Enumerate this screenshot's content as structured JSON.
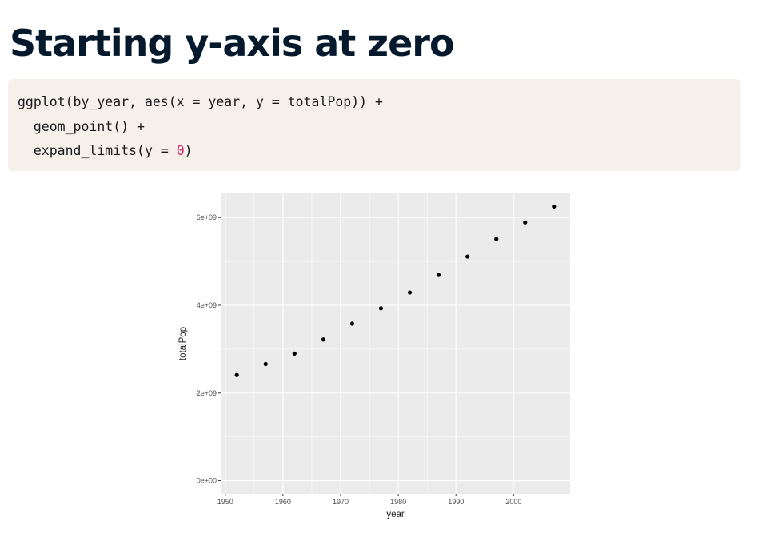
{
  "slide": {
    "title": "Starting y-axis at zero"
  },
  "code": {
    "line1": "ggplot(by_year, aes(x = year, y = totalPop)) +",
    "line2_indent": "  ",
    "line2": "geom_point() +",
    "line3_indent": "  ",
    "line3_pre": "expand_limits(y = ",
    "line3_num": "0",
    "line3_post": ")"
  },
  "colors": {
    "title": "#05192d",
    "code_background": "#f5f1ea",
    "code_number": "#d6246e",
    "panel_background": "#ebebeb",
    "grid_major": "#ffffff",
    "point": "#000000"
  },
  "chart_data": {
    "type": "scatter",
    "xlabel": "year",
    "ylabel": "totalPop",
    "x": [
      1952,
      1957,
      1962,
      1967,
      1972,
      1977,
      1982,
      1987,
      1992,
      1997,
      2002,
      2007
    ],
    "y": [
      2410000000.0,
      2660000000.0,
      2900000000.0,
      3220000000.0,
      3580000000.0,
      3930000000.0,
      4290000000.0,
      4690000000.0,
      5110000000.0,
      5510000000.0,
      5890000000.0,
      6250000000.0
    ],
    "xlim": [
      1949.2,
      2009.8
    ],
    "ylim": [
      -300000000.0,
      6550000000.0
    ],
    "x_ticks": [
      1950,
      1960,
      1970,
      1980,
      1990,
      2000
    ],
    "x_tick_labels": [
      "1950",
      "1960",
      "1970",
      "1980",
      "1990",
      "2000"
    ],
    "y_ticks": [
      0,
      2000000000.0,
      4000000000.0,
      6000000000.0
    ],
    "y_tick_labels": [
      "0e+00",
      "2e+09",
      "4e+09",
      "6e+09"
    ],
    "grid": true,
    "legend": "none"
  }
}
